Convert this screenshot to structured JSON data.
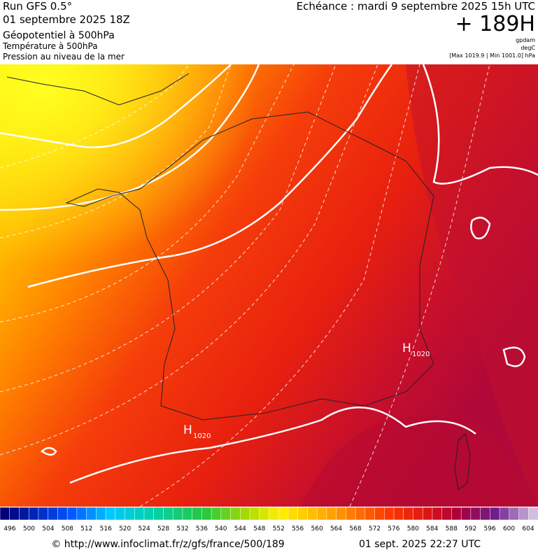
{
  "header": {
    "run": "Run GFS 0.5°",
    "run_date": "01 septembre 2025 18Z",
    "field1": "Géopotentiel à 500hPa",
    "field2": "Température à 500hPa",
    "field3": "Pression au niveau de la mer",
    "valid": "Echéance : mardi 9 septembre 2025 15h UTC",
    "lead": "+ 189H",
    "unit1": "gpdam",
    "unit2": "degC",
    "range": "[Max 1019.9 | Min 1001.0] hPa"
  },
  "map": {
    "highs": [
      {
        "letter": "H",
        "pressure": 1020
      },
      {
        "letter": "H",
        "pressure": 1020
      }
    ]
  },
  "colorbar": {
    "labels": [
      496,
      500,
      504,
      508,
      512,
      516,
      520,
      524,
      528,
      532,
      536,
      540,
      544,
      548,
      552,
      556,
      560,
      564,
      568,
      572,
      576,
      580,
      584,
      588,
      592,
      596,
      600,
      604
    ]
  },
  "footer": {
    "url": "© http://www.infoclimat.fr/z/gfs/france/500/189",
    "date": "01 sept. 2025 22:27 UTC"
  }
}
